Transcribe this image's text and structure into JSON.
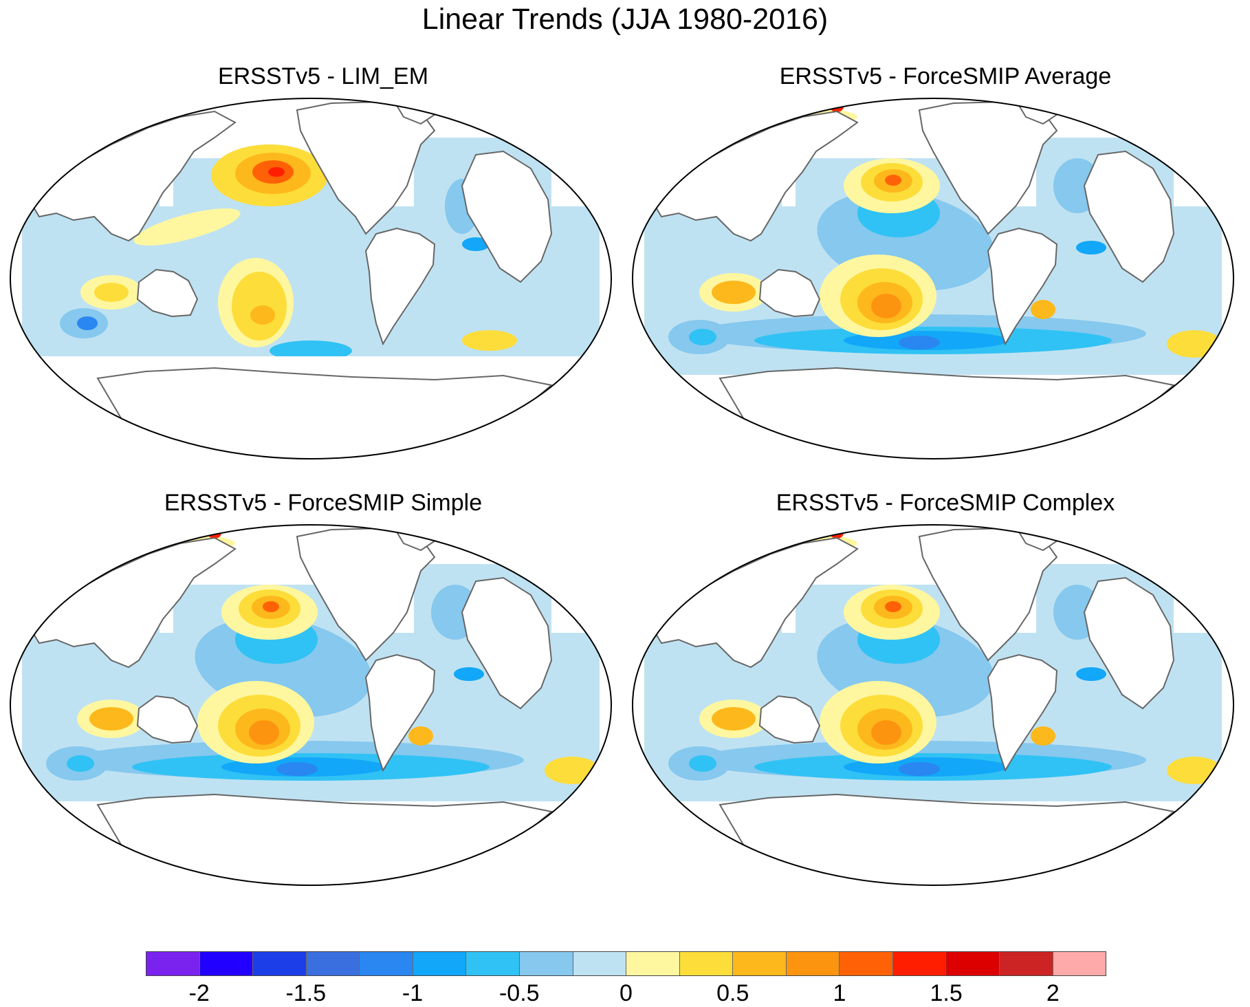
{
  "title": "Linear Trends (JJA 1980-2016)",
  "panels": [
    {
      "title": "ERSSTv5 - LIM_EM"
    },
    {
      "title": "ERSSTv5 - ForceSMIP Average"
    },
    {
      "title": "ERSSTv5 - ForceSMIP Simple"
    },
    {
      "title": "ERSSTv5 - ForceSMIP Complex"
    }
  ],
  "colorbar": {
    "colors": [
      "#7a22ee",
      "#2200ff",
      "#1c3ee8",
      "#3a6fe0",
      "#2a86f0",
      "#12a7f8",
      "#30c2f4",
      "#86c8ee",
      "#bfe2f2",
      "#fff7a0",
      "#fddd3a",
      "#fdb81c",
      "#fd9410",
      "#ff6206",
      "#ff1f00",
      "#dd0000",
      "#cc2424",
      "#ffaaaa"
    ],
    "ticks": [
      {
        "value": -2,
        "label": "-2"
      },
      {
        "value": -1.5,
        "label": "-1.5"
      },
      {
        "value": -1,
        "label": "-1"
      },
      {
        "value": -0.5,
        "label": "-0.5"
      },
      {
        "value": 0,
        "label": "0"
      },
      {
        "value": 0.5,
        "label": "0.5"
      },
      {
        "value": 1,
        "label": "1"
      },
      {
        "value": 1.5,
        "label": "1.5"
      },
      {
        "value": 2,
        "label": "2"
      }
    ]
  }
}
